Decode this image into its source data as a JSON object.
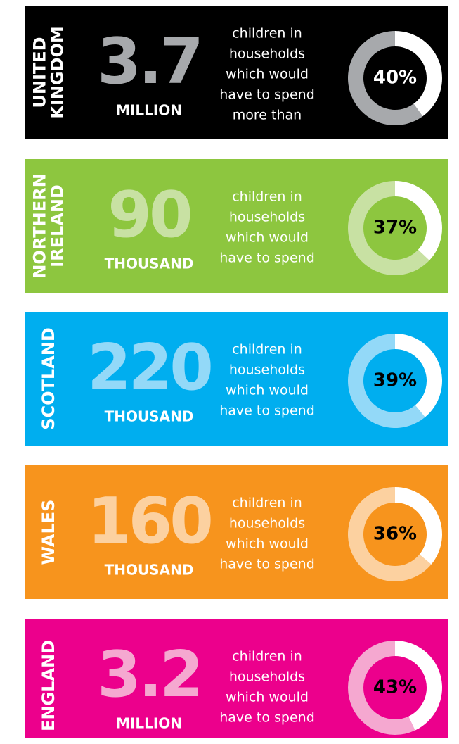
{
  "panels": [
    {
      "region": [
        "UNITED",
        "KINGDOM"
      ],
      "number": "3.7",
      "unit": "MILLION",
      "text": [
        "children in",
        "households",
        "which would",
        "have to spend",
        "more than"
      ],
      "percent": 40,
      "percent_label": "40%",
      "background": "#000000",
      "accent": "#a7a9ac"
    },
    {
      "region": [
        "NORTHERN",
        "IRELAND"
      ],
      "number": "90",
      "unit": "THOUSAND",
      "text": [
        "children in",
        "households",
        "which would",
        "have to spend"
      ],
      "percent": 37,
      "percent_label": "37%",
      "background": "#8dc63f",
      "accent": "#c8e1a3"
    },
    {
      "region": [
        "SCOTLAND"
      ],
      "number": "220",
      "unit": "THOUSAND",
      "text": [
        "children in",
        "households",
        "which would",
        "have to spend"
      ],
      "percent": 39,
      "percent_label": "39%",
      "background": "#00aeef",
      "accent": "#93d9f8"
    },
    {
      "region": [
        "WALES"
      ],
      "number": "160",
      "unit": "THOUSAND",
      "text": [
        "children in",
        "households",
        "which would",
        "have to spend"
      ],
      "percent": 36,
      "percent_label": "36%",
      "background": "#f7941d",
      "accent": "#fcd1a0"
    },
    {
      "region": [
        "ENGLAND"
      ],
      "number": "3.2",
      "unit": "MILLION",
      "text": [
        "children in",
        "households",
        "which would",
        "have to spend"
      ],
      "percent": 43,
      "percent_label": "43%",
      "background": "#ec008c",
      "accent": "#f5a8d0"
    }
  ]
}
